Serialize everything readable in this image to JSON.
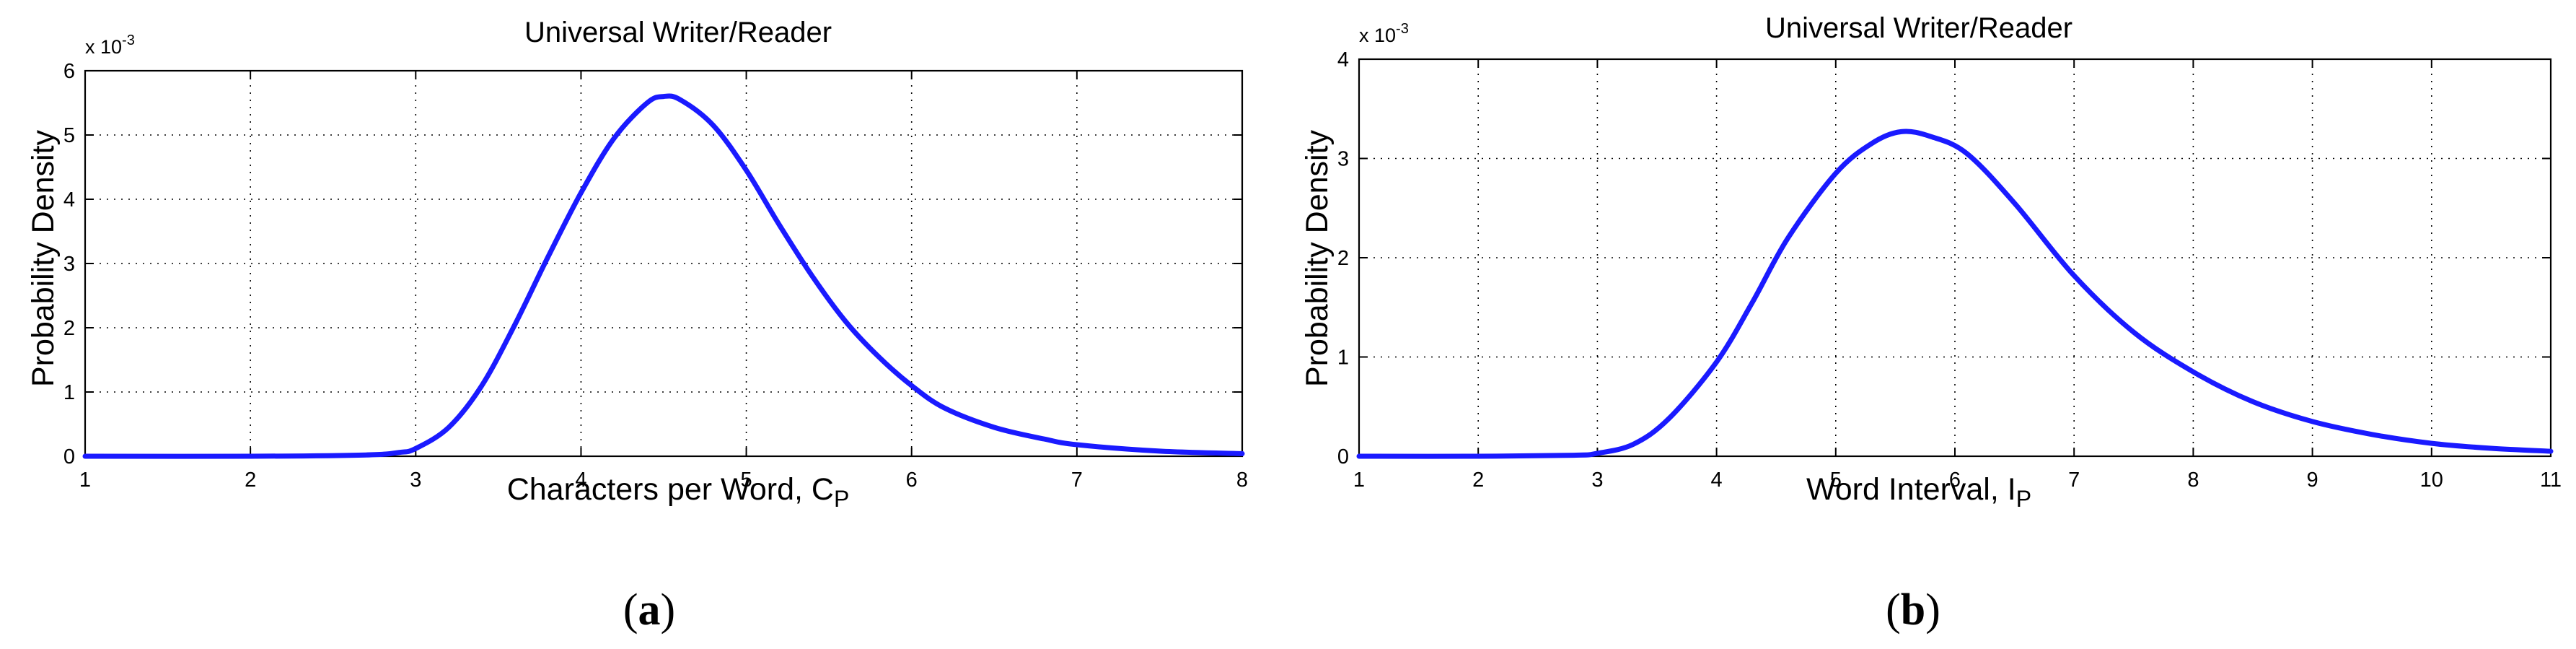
{
  "figure": {
    "panels": [
      {
        "sub_label_open": "(",
        "sub_label_letter": "a",
        "sub_label_close": ")"
      },
      {
        "sub_label_open": "(",
        "sub_label_letter": "b",
        "sub_label_close": ")"
      }
    ]
  },
  "chart_data": [
    {
      "type": "line",
      "title": "Universal Writer/Reader",
      "xlabel_main": "Characters per Word, C",
      "xlabel_sub": "P",
      "ylabel": "Probability Density",
      "y_exponent_label": "x 10",
      "y_exponent_power": "-3",
      "xlim": [
        1,
        8
      ],
      "ylim": [
        0,
        6
      ],
      "xticks": [
        "1",
        "2",
        "3",
        "4",
        "5",
        "6",
        "7",
        "8"
      ],
      "yticks": [
        "0",
        "1",
        "2",
        "3",
        "4",
        "5",
        "6"
      ],
      "grid": true,
      "line_color": "#1a1aff",
      "series": [
        {
          "x": [
            1.0,
            2.0,
            2.7,
            2.9,
            3.0,
            3.2,
            3.4,
            3.6,
            3.8,
            4.0,
            4.2,
            4.4,
            4.5,
            4.6,
            4.8,
            5.0,
            5.2,
            5.4,
            5.6,
            5.8,
            6.0,
            6.2,
            6.5,
            6.8,
            7.0,
            7.5,
            8.0
          ],
          "y": [
            0.0,
            0.0,
            0.02,
            0.06,
            0.12,
            0.45,
            1.1,
            2.05,
            3.1,
            4.1,
            4.95,
            5.5,
            5.6,
            5.55,
            5.15,
            4.45,
            3.6,
            2.8,
            2.1,
            1.55,
            1.1,
            0.75,
            0.45,
            0.27,
            0.18,
            0.08,
            0.04
          ]
        }
      ]
    },
    {
      "type": "line",
      "title": "Universal Writer/Reader",
      "xlabel_main": "Word Interval, I",
      "xlabel_sub": "P",
      "ylabel": "Probability Density",
      "y_exponent_label": "x 10",
      "y_exponent_power": "-3",
      "xlim": [
        1,
        11
      ],
      "ylim": [
        0,
        4
      ],
      "xticks": [
        "1",
        "2",
        "3",
        "4",
        "5",
        "6",
        "7",
        "8",
        "9",
        "10",
        "11"
      ],
      "yticks": [
        "0",
        "1",
        "2",
        "3",
        "4"
      ],
      "grid": true,
      "line_color": "#1a1aff",
      "series": [
        {
          "x": [
            1.0,
            2.0,
            2.8,
            3.0,
            3.3,
            3.6,
            4.0,
            4.3,
            4.6,
            5.0,
            5.3,
            5.55,
            5.8,
            6.1,
            6.5,
            7.0,
            7.5,
            8.0,
            8.5,
            9.0,
            9.5,
            10.0,
            10.5,
            11.0
          ],
          "y": [
            0.0,
            0.0,
            0.01,
            0.03,
            0.12,
            0.38,
            0.95,
            1.55,
            2.2,
            2.85,
            3.15,
            3.27,
            3.22,
            3.05,
            2.55,
            1.82,
            1.25,
            0.85,
            0.55,
            0.35,
            0.22,
            0.13,
            0.08,
            0.05
          ]
        }
      ]
    }
  ]
}
